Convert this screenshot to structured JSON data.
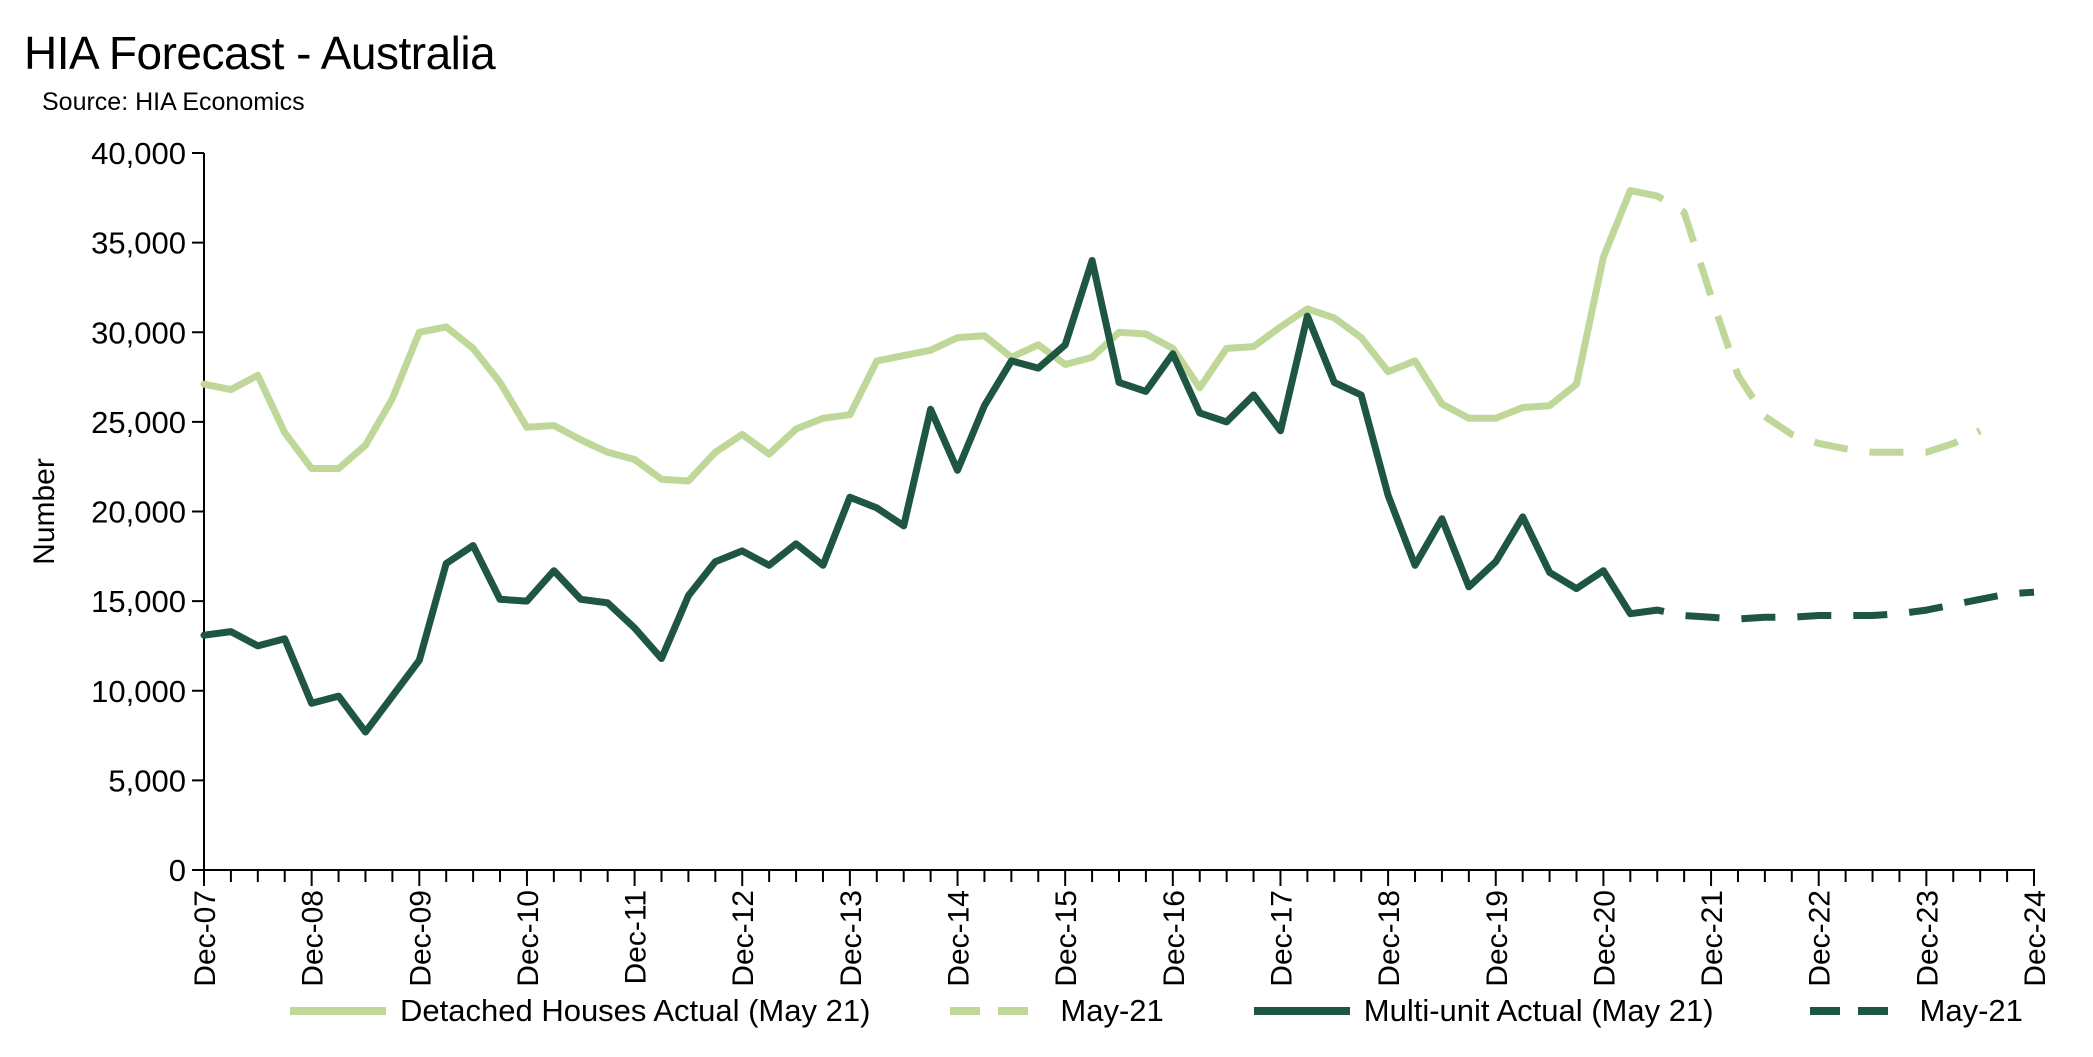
{
  "chart_data": {
    "type": "line",
    "title": "HIA Forecast - Australia",
    "subtitle": "Source: HIA Economics",
    "ylabel": "Number",
    "xlabel": "",
    "ylim": [
      0,
      40000
    ],
    "y_ticks": [
      0,
      5000,
      10000,
      15000,
      20000,
      25000,
      30000,
      35000,
      40000
    ],
    "y_tick_labels": [
      "0",
      "5,000",
      "10,000",
      "15,000",
      "20,000",
      "25,000",
      "30,000",
      "35,000",
      "40,000"
    ],
    "x_tick_labels": [
      "Dec-07",
      "Dec-08",
      "Dec-09",
      "Dec-10",
      "Dec-11",
      "Dec-12",
      "Dec-13",
      "Dec-14",
      "Dec-15",
      "Dec-16",
      "Dec-17",
      "Dec-18",
      "Dec-19",
      "Dec-20",
      "Dec-21",
      "Dec-22",
      "Dec-23",
      "Dec-24"
    ],
    "x_unit": "quarters starting Dec-07",
    "grid": false,
    "legend_position": "bottom",
    "series": [
      {
        "name": "Detached Houses Actual (May 21)",
        "color": "#bfd89a",
        "style": "solid",
        "x_start": 0,
        "values": [
          27100,
          26800,
          27600,
          24400,
          22400,
          22400,
          23700,
          26300,
          30000,
          30300,
          29100,
          27200,
          24700,
          24800,
          24000,
          23300,
          22900,
          21800,
          21700,
          23300,
          24300,
          23200,
          24600,
          25200,
          25400,
          28400,
          28700,
          29000,
          29700,
          29800,
          28600,
          29300,
          28200,
          28600,
          30000,
          29900,
          29100,
          26900,
          29100,
          29200,
          30300,
          31300,
          30800,
          29700,
          27800,
          28400,
          26000,
          25200,
          25200,
          25800,
          25900,
          27100,
          34200,
          37900
        ]
      },
      {
        "name": "May-21",
        "color": "#bfd89a",
        "style": "dashed",
        "x_start": 53,
        "values": [
          37900,
          37600,
          36700,
          32000,
          27600,
          25300,
          24300,
          23800,
          23500,
          23300,
          23300,
          23300,
          23800,
          24500
        ]
      },
      {
        "name": "Multi-unit Actual (May 21)",
        "color": "#1e5641",
        "style": "solid",
        "x_start": 0,
        "values": [
          13100,
          13300,
          12500,
          12900,
          9300,
          9700,
          7700,
          9700,
          11700,
          17100,
          18100,
          15100,
          15000,
          16700,
          15100,
          14900,
          13500,
          11800,
          15300,
          17200,
          17800,
          17000,
          18200,
          17000,
          20800,
          20200,
          19200,
          25700,
          22300,
          25900,
          28400,
          28000,
          29300,
          34000,
          27200,
          26700,
          28800,
          25500,
          25000,
          26500,
          24500,
          30900,
          27200,
          26500,
          20900,
          17000,
          19600,
          15800,
          17200,
          19700,
          16600,
          15700,
          16700,
          14300
        ]
      },
      {
        "name": "May-21",
        "color": "#1e5641",
        "style": "dashed",
        "x_start": 53,
        "values": [
          14300,
          14500,
          14200,
          14100,
          14000,
          14100,
          14100,
          14200,
          14200,
          14200,
          14300,
          14500,
          14800,
          15100,
          15400,
          15500
        ]
      }
    ]
  }
}
